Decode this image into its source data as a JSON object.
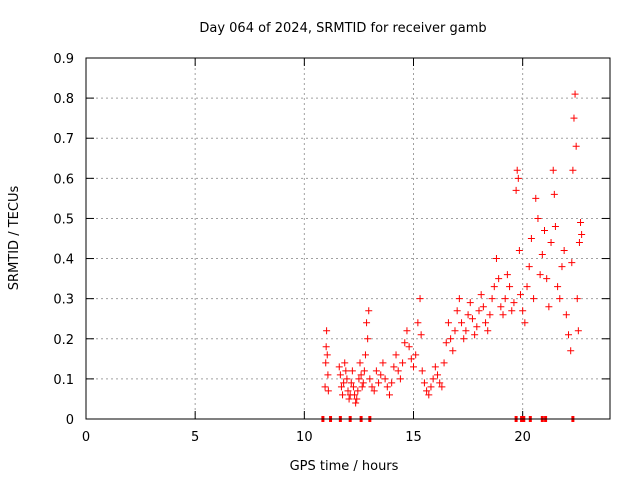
{
  "chart_data": {
    "type": "scatter",
    "title": "Day 064 of 2024, SRMTID for receiver gamb",
    "xlabel": "GPS time / hours",
    "ylabel": "SRMTID / TECUs",
    "xlim": [
      0,
      24
    ],
    "ylim": [
      0,
      0.9
    ],
    "xticks": [
      0,
      5,
      10,
      15,
      20
    ],
    "yticks": [
      0,
      0.1,
      0.2,
      0.3,
      0.4,
      0.5,
      0.6,
      0.7,
      0.8,
      0.9
    ],
    "xtick_labels": [
      "0",
      "5",
      "10",
      "15",
      "20"
    ],
    "ytick_labels": [
      "0",
      "0.1",
      "0.2",
      "0.3",
      "0.4",
      "0.5",
      "0.6",
      "0.7",
      "0.8",
      "0.9"
    ],
    "grid": true,
    "marker": "+",
    "marker_color": "#ff0000",
    "series": [
      {
        "name": "SRMTID",
        "points": [
          [
            10.95,
            0.08
          ],
          [
            10.98,
            0.14
          ],
          [
            11.0,
            0.18
          ],
          [
            11.02,
            0.22
          ],
          [
            11.05,
            0.16
          ],
          [
            11.08,
            0.11
          ],
          [
            11.1,
            0.07
          ],
          [
            11.6,
            0.13
          ],
          [
            11.65,
            0.11
          ],
          [
            11.7,
            0.08
          ],
          [
            11.75,
            0.06
          ],
          [
            11.8,
            0.09
          ],
          [
            11.85,
            0.14
          ],
          [
            11.9,
            0.12
          ],
          [
            11.95,
            0.1
          ],
          [
            12.0,
            0.07
          ],
          [
            12.05,
            0.05
          ],
          [
            12.1,
            0.06
          ],
          [
            12.15,
            0.09
          ],
          [
            12.2,
            0.12
          ],
          [
            12.25,
            0.08
          ],
          [
            12.3,
            0.06
          ],
          [
            12.35,
            0.04
          ],
          [
            12.4,
            0.05
          ],
          [
            12.45,
            0.07
          ],
          [
            12.5,
            0.1
          ],
          [
            12.55,
            0.14
          ],
          [
            12.6,
            0.11
          ],
          [
            12.65,
            0.08
          ],
          [
            12.7,
            0.09
          ],
          [
            12.75,
            0.12
          ],
          [
            12.8,
            0.16
          ],
          [
            12.85,
            0.24
          ],
          [
            12.9,
            0.2
          ],
          [
            12.95,
            0.27
          ],
          [
            13.0,
            0.1
          ],
          [
            13.1,
            0.08
          ],
          [
            13.2,
            0.07
          ],
          [
            13.3,
            0.12
          ],
          [
            13.4,
            0.09
          ],
          [
            13.5,
            0.11
          ],
          [
            13.6,
            0.14
          ],
          [
            13.7,
            0.1
          ],
          [
            13.8,
            0.08
          ],
          [
            13.9,
            0.06
          ],
          [
            14.0,
            0.09
          ],
          [
            14.1,
            0.13
          ],
          [
            14.2,
            0.16
          ],
          [
            14.3,
            0.12
          ],
          [
            14.4,
            0.1
          ],
          [
            14.5,
            0.14
          ],
          [
            14.6,
            0.19
          ],
          [
            14.7,
            0.22
          ],
          [
            14.8,
            0.18
          ],
          [
            14.9,
            0.15
          ],
          [
            15.0,
            0.13
          ],
          [
            15.1,
            0.16
          ],
          [
            15.2,
            0.24
          ],
          [
            15.3,
            0.3
          ],
          [
            15.35,
            0.21
          ],
          [
            15.4,
            0.12
          ],
          [
            15.5,
            0.09
          ],
          [
            15.6,
            0.07
          ],
          [
            15.7,
            0.06
          ],
          [
            15.8,
            0.08
          ],
          [
            15.9,
            0.1
          ],
          [
            16.0,
            0.13
          ],
          [
            16.1,
            0.11
          ],
          [
            16.2,
            0.09
          ],
          [
            16.3,
            0.08
          ],
          [
            16.4,
            0.14
          ],
          [
            16.5,
            0.19
          ],
          [
            16.6,
            0.24
          ],
          [
            16.7,
            0.2
          ],
          [
            16.8,
            0.17
          ],
          [
            16.9,
            0.22
          ],
          [
            17.0,
            0.27
          ],
          [
            17.1,
            0.3
          ],
          [
            17.2,
            0.24
          ],
          [
            17.3,
            0.2
          ],
          [
            17.4,
            0.22
          ],
          [
            17.5,
            0.26
          ],
          [
            17.6,
            0.29
          ],
          [
            17.7,
            0.25
          ],
          [
            17.8,
            0.21
          ],
          [
            17.9,
            0.23
          ],
          [
            18.0,
            0.27
          ],
          [
            18.1,
            0.31
          ],
          [
            18.2,
            0.28
          ],
          [
            18.3,
            0.24
          ],
          [
            18.4,
            0.22
          ],
          [
            18.5,
            0.26
          ],
          [
            18.6,
            0.3
          ],
          [
            18.7,
            0.33
          ],
          [
            18.8,
            0.4
          ],
          [
            18.9,
            0.35
          ],
          [
            19.0,
            0.28
          ],
          [
            19.1,
            0.26
          ],
          [
            19.2,
            0.3
          ],
          [
            19.3,
            0.36
          ],
          [
            19.4,
            0.33
          ],
          [
            19.5,
            0.27
          ],
          [
            19.6,
            0.29
          ],
          [
            19.7,
            0.57
          ],
          [
            19.75,
            0.62
          ],
          [
            19.8,
            0.6
          ],
          [
            19.85,
            0.42
          ],
          [
            19.9,
            0.31
          ],
          [
            20.0,
            0.27
          ],
          [
            20.1,
            0.24
          ],
          [
            20.2,
            0.33
          ],
          [
            20.3,
            0.38
          ],
          [
            20.4,
            0.45
          ],
          [
            20.5,
            0.3
          ],
          [
            20.6,
            0.55
          ],
          [
            20.7,
            0.5
          ],
          [
            20.8,
            0.36
          ],
          [
            20.9,
            0.41
          ],
          [
            21.0,
            0.47
          ],
          [
            21.1,
            0.35
          ],
          [
            21.2,
            0.28
          ],
          [
            21.3,
            0.44
          ],
          [
            21.4,
            0.62
          ],
          [
            21.45,
            0.56
          ],
          [
            21.5,
            0.48
          ],
          [
            21.6,
            0.33
          ],
          [
            21.7,
            0.3
          ],
          [
            21.8,
            0.38
          ],
          [
            21.9,
            0.42
          ],
          [
            22.0,
            0.26
          ],
          [
            22.1,
            0.21
          ],
          [
            22.2,
            0.17
          ],
          [
            22.25,
            0.39
          ],
          [
            22.3,
            0.62
          ],
          [
            22.35,
            0.75
          ],
          [
            22.4,
            0.81
          ],
          [
            22.45,
            0.68
          ],
          [
            22.5,
            0.3
          ],
          [
            22.55,
            0.22
          ],
          [
            22.6,
            0.44
          ],
          [
            22.65,
            0.49
          ],
          [
            22.7,
            0.46
          ]
        ]
      }
    ],
    "baseline_markers_x": [
      10.85,
      11.2,
      11.65,
      12.1,
      12.6,
      13.0,
      19.7,
      19.95,
      20.05,
      20.35,
      20.9,
      21.05,
      22.3
    ]
  }
}
